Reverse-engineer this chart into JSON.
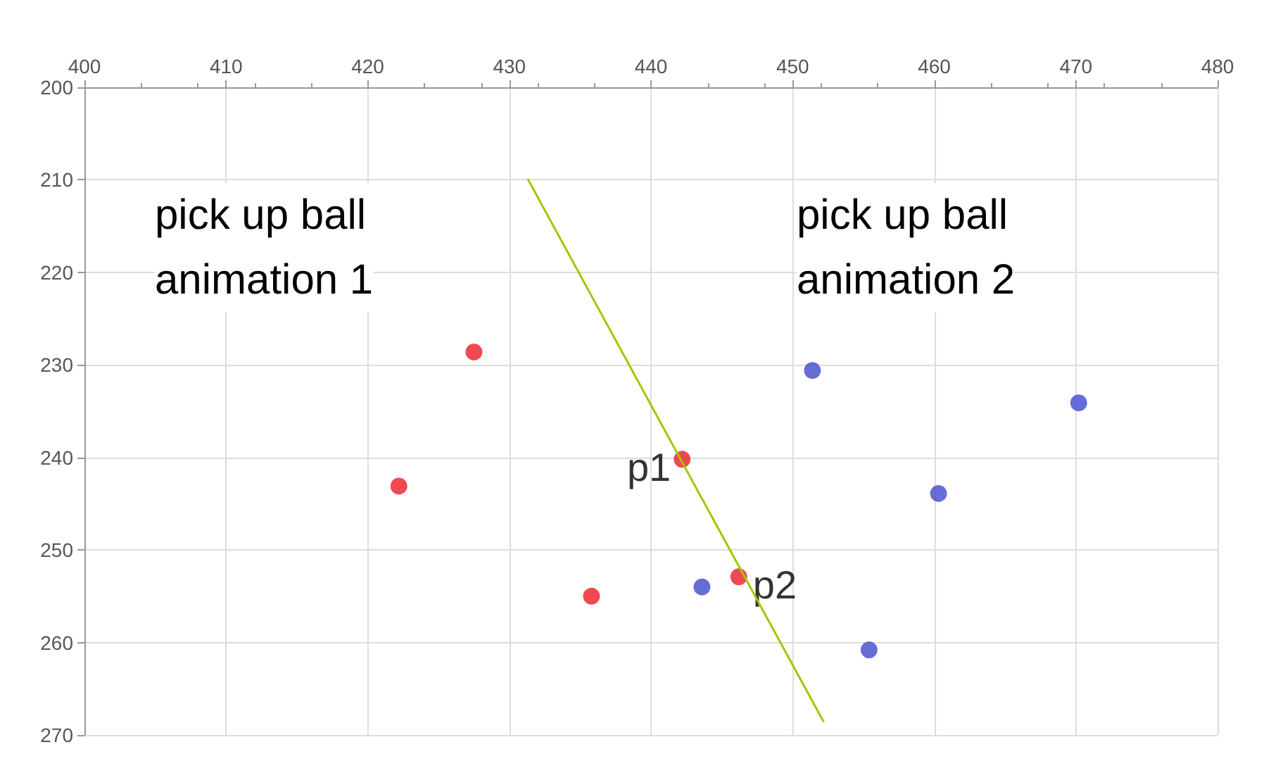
{
  "chart_data": {
    "type": "scatter",
    "xlim": [
      400,
      480
    ],
    "xticks": [
      400,
      410,
      420,
      430,
      440,
      450,
      460,
      470,
      480
    ],
    "ylim": [
      270,
      200
    ],
    "yticks": [
      200,
      210,
      220,
      230,
      240,
      250,
      260,
      270
    ],
    "grid": true,
    "marker": "circle",
    "series": [
      {
        "color": "#ee1c25",
        "x": [
          427.5,
          422.2,
          435.8,
          442.2,
          446.2
        ],
        "values": [
          228.6,
          243.1,
          255.0,
          240.2,
          252.9
        ]
      },
      {
        "color": "#3f48cc",
        "x": [
          451.4,
          470.2,
          460.3,
          443.6,
          455.4
        ],
        "values": [
          230.6,
          234.1,
          243.9,
          254.0,
          260.8
        ]
      },
      {
        "type": "line",
        "marker": "none",
        "color": "#99cc00",
        "x": [
          431.3,
          452.2
        ],
        "values": [
          209.9,
          268.6
        ]
      }
    ],
    "annotations": [
      "pick up ball\nanimation 1",
      "pick up ball\nanimation 2",
      {
        "text": "p1",
        "x": 442.2,
        "y": 240.2
      },
      {
        "text": "p2",
        "x": 446.2,
        "y": 252.9
      }
    ]
  }
}
